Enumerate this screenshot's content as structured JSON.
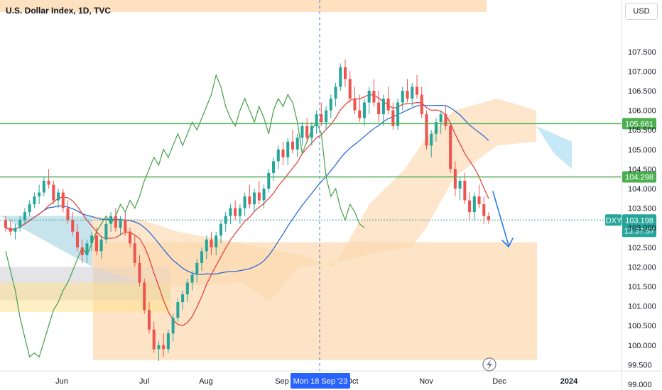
{
  "header": {
    "title": "U.S. Dollar Index, 1D, TVC",
    "currency_button": "USD",
    "lightning_icon": "lightning-icon"
  },
  "chart_data": {
    "type": "candlestick",
    "title": "U.S. Dollar Index, 1D, TVC",
    "ylim": [
      99.3,
      108.0
    ],
    "y_ticks": [
      "107.500",
      "107.000",
      "106.500",
      "106.000",
      "105.500",
      "105.000",
      "104.500",
      "104.000",
      "103.500",
      "103.000",
      "102.500",
      "102.000",
      "101.500",
      "101.000",
      "100.500",
      "100.000",
      "99.500",
      "99.000"
    ],
    "x_ticks": [
      "Jun",
      "Jul",
      "Aug",
      "Sep",
      "Oct",
      "Nov",
      "Dec",
      "2024"
    ],
    "crosshair_date": "Mon 18 Sep '23",
    "horizontal_levels": [
      105.661,
      104.298
    ],
    "last_price": {
      "symbol": "DXY",
      "value": "103.198",
      "countdown": "13:37:57"
    },
    "horizontal_level_labels": [
      "105.661",
      "104.298"
    ],
    "colors": {
      "up": "#26a69a",
      "down": "#ef5350",
      "level": "#4caf50",
      "tenkan": "#e53935",
      "kijun": "#1e63d6",
      "chikou": "#43a047",
      "cloud_bull": "#b9e4f5",
      "cloud_bear": "#fcd9b0",
      "zone": "#fbc98d",
      "arrow": "#2b7cf0"
    },
    "candles": [
      [
        103.2,
        103.3,
        102.9,
        103.0
      ],
      [
        103.0,
        103.2,
        102.8,
        102.9
      ],
      [
        102.9,
        103.1,
        102.7,
        103.0
      ],
      [
        103.0,
        103.3,
        102.9,
        103.2
      ],
      [
        103.2,
        103.5,
        103.1,
        103.4
      ],
      [
        103.4,
        103.7,
        103.3,
        103.6
      ],
      [
        103.6,
        103.9,
        103.5,
        103.8
      ],
      [
        103.8,
        104.1,
        103.6,
        103.9
      ],
      [
        103.9,
        104.3,
        103.8,
        104.2
      ],
      [
        104.2,
        104.5,
        104.0,
        104.1
      ],
      [
        104.1,
        104.2,
        103.6,
        103.7
      ],
      [
        103.7,
        104.0,
        103.5,
        103.9
      ],
      [
        103.9,
        104.0,
        103.4,
        103.5
      ],
      [
        103.5,
        103.7,
        103.1,
        103.2
      ],
      [
        103.2,
        103.4,
        102.8,
        102.9
      ],
      [
        102.9,
        103.1,
        102.4,
        102.5
      ],
      [
        102.5,
        102.7,
        102.1,
        102.3
      ],
      [
        102.3,
        102.7,
        102.1,
        102.6
      ],
      [
        102.6,
        102.9,
        102.4,
        102.8
      ],
      [
        102.8,
        103.0,
        102.3,
        102.4
      ],
      [
        102.4,
        102.8,
        102.2,
        102.7
      ],
      [
        102.7,
        103.2,
        102.6,
        103.1
      ],
      [
        103.1,
        103.4,
        102.9,
        103.3
      ],
      [
        103.3,
        103.5,
        102.9,
        103.0
      ],
      [
        103.0,
        103.3,
        102.8,
        103.2
      ],
      [
        103.2,
        103.4,
        102.8,
        102.9
      ],
      [
        102.9,
        103.0,
        102.5,
        102.6
      ],
      [
        102.6,
        102.8,
        102.0,
        102.1
      ],
      [
        102.1,
        102.3,
        101.5,
        101.6
      ],
      [
        101.6,
        101.7,
        100.8,
        100.9
      ],
      [
        100.9,
        101.1,
        100.3,
        100.4
      ],
      [
        100.4,
        100.6,
        99.8,
        99.9
      ],
      [
        99.9,
        100.1,
        99.6,
        100.0
      ],
      [
        100.0,
        100.3,
        99.7,
        99.9
      ],
      [
        99.9,
        100.4,
        99.8,
        100.3
      ],
      [
        100.3,
        100.8,
        100.1,
        100.7
      ],
      [
        100.7,
        101.2,
        100.6,
        101.1
      ],
      [
        101.1,
        101.4,
        100.9,
        101.3
      ],
      [
        101.3,
        101.7,
        101.1,
        101.6
      ],
      [
        101.6,
        101.9,
        101.4,
        101.8
      ],
      [
        101.8,
        102.2,
        101.6,
        102.1
      ],
      [
        102.1,
        102.5,
        101.9,
        102.4
      ],
      [
        102.4,
        102.8,
        102.2,
        102.7
      ],
      [
        102.7,
        102.9,
        102.3,
        102.5
      ],
      [
        102.5,
        102.9,
        102.3,
        102.8
      ],
      [
        102.8,
        103.2,
        102.6,
        103.1
      ],
      [
        103.1,
        103.4,
        102.9,
        103.3
      ],
      [
        103.3,
        103.6,
        103.1,
        103.5
      ],
      [
        103.5,
        103.7,
        103.2,
        103.3
      ],
      [
        103.3,
        103.6,
        103.1,
        103.5
      ],
      [
        103.5,
        103.9,
        103.3,
        103.8
      ],
      [
        103.8,
        104.1,
        103.5,
        103.6
      ],
      [
        103.6,
        104.0,
        103.4,
        103.9
      ],
      [
        103.9,
        104.2,
        103.6,
        103.7
      ],
      [
        103.7,
        104.1,
        103.5,
        104.0
      ],
      [
        104.0,
        104.5,
        103.9,
        104.4
      ],
      [
        104.4,
        104.8,
        104.2,
        104.7
      ],
      [
        104.7,
        105.1,
        104.5,
        105.0
      ],
      [
        105.0,
        105.2,
        104.6,
        104.8
      ],
      [
        104.8,
        105.3,
        104.6,
        105.2
      ],
      [
        105.2,
        105.5,
        104.9,
        105.0
      ],
      [
        105.0,
        105.4,
        104.8,
        105.3
      ],
      [
        105.3,
        105.7,
        105.1,
        105.6
      ],
      [
        105.6,
        105.8,
        105.2,
        105.3
      ],
      [
        105.3,
        105.7,
        105.1,
        105.6
      ],
      [
        105.6,
        106.0,
        105.4,
        105.9
      ],
      [
        105.9,
        106.2,
        105.6,
        105.7
      ],
      [
        105.7,
        106.1,
        105.5,
        106.0
      ],
      [
        106.0,
        106.4,
        105.8,
        106.3
      ],
      [
        106.3,
        106.7,
        106.1,
        106.6
      ],
      [
        106.6,
        107.2,
        106.5,
        107.1
      ],
      [
        107.1,
        107.3,
        106.6,
        106.8
      ],
      [
        106.8,
        107.0,
        106.2,
        106.3
      ],
      [
        106.3,
        106.6,
        105.9,
        106.0
      ],
      [
        106.0,
        106.4,
        105.7,
        105.8
      ],
      [
        105.8,
        106.3,
        105.6,
        106.2
      ],
      [
        106.2,
        106.6,
        105.9,
        106.5
      ],
      [
        106.5,
        106.8,
        106.1,
        106.2
      ],
      [
        106.2,
        106.5,
        105.7,
        105.9
      ],
      [
        105.9,
        106.4,
        105.6,
        106.3
      ],
      [
        106.3,
        106.6,
        105.9,
        106.0
      ],
      [
        106.0,
        106.2,
        105.5,
        105.6
      ],
      [
        105.6,
        106.3,
        105.5,
        106.2
      ],
      [
        106.2,
        106.6,
        106.0,
        106.5
      ],
      [
        106.5,
        106.8,
        106.2,
        106.3
      ],
      [
        106.3,
        106.7,
        106.1,
        106.6
      ],
      [
        106.6,
        106.9,
        106.3,
        106.4
      ],
      [
        106.4,
        106.6,
        105.8,
        105.9
      ],
      [
        105.9,
        106.0,
        105.0,
        105.1
      ],
      [
        105.1,
        105.5,
        104.8,
        105.4
      ],
      [
        105.4,
        105.8,
        105.2,
        105.7
      ],
      [
        105.7,
        106.0,
        105.4,
        105.9
      ],
      [
        105.9,
        106.1,
        105.5,
        105.6
      ],
      [
        105.6,
        105.7,
        104.4,
        104.5
      ],
      [
        104.5,
        104.7,
        103.8,
        104.0
      ],
      [
        104.0,
        104.3,
        103.7,
        104.2
      ],
      [
        104.2,
        104.4,
        103.6,
        103.7
      ],
      [
        103.7,
        103.9,
        103.2,
        103.4
      ],
      [
        103.4,
        103.9,
        103.2,
        103.8
      ],
      [
        103.8,
        104.1,
        103.5,
        103.6
      ],
      [
        103.6,
        103.8,
        103.1,
        103.3
      ],
      [
        103.3,
        103.4,
        103.1,
        103.2
      ]
    ]
  }
}
